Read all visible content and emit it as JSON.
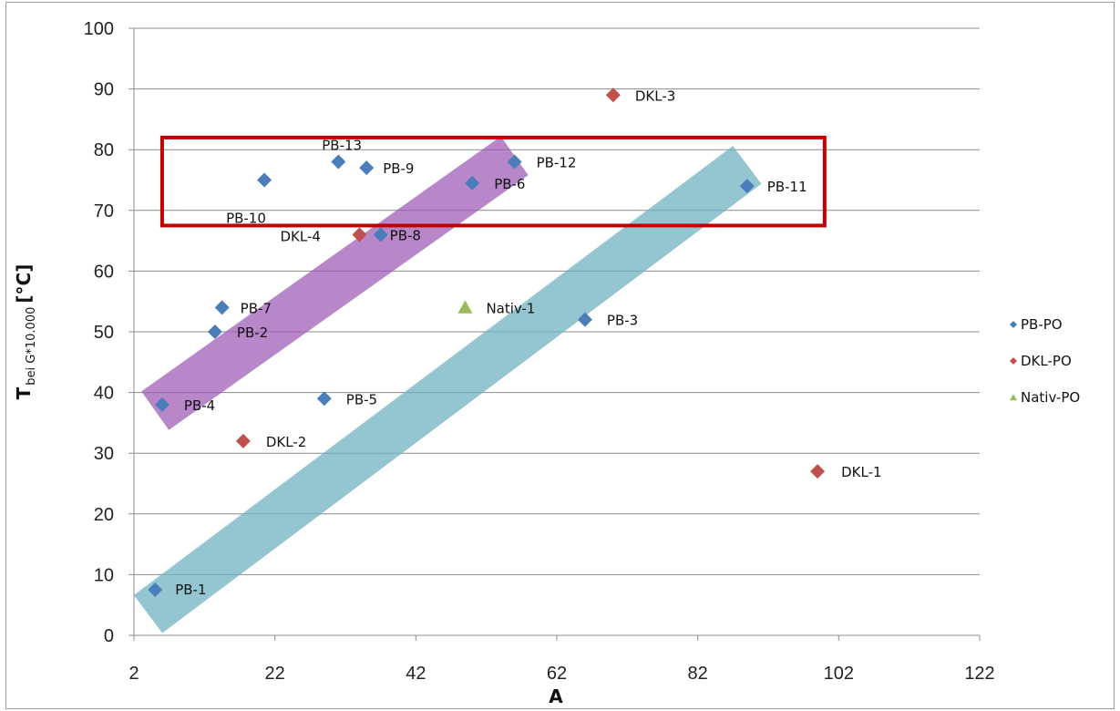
{
  "chart_data": {
    "type": "scatter",
    "xlabel": "A",
    "ylabel": {
      "main": "T",
      "subscript": "bei G*10.000",
      "unit": "[°C]"
    },
    "xlim": [
      2,
      122
    ],
    "ylim": [
      0,
      100
    ],
    "xticks": [
      2,
      22,
      42,
      62,
      82,
      102,
      122
    ],
    "yticks": [
      0,
      10,
      20,
      30,
      40,
      50,
      60,
      70,
      80,
      90,
      100
    ],
    "grid": "horizontal",
    "legend_position": "right",
    "series": [
      {
        "name": "PB-PO",
        "color": "#4a7ebb",
        "marker": "diamond",
        "points": [
          {
            "label": "PB-1",
            "x": 5,
            "y": 7.5
          },
          {
            "label": "PB-2",
            "x": 13.5,
            "y": 50
          },
          {
            "label": "PB-3",
            "x": 66,
            "y": 52
          },
          {
            "label": "PB-4",
            "x": 6,
            "y": 38
          },
          {
            "label": "PB-5",
            "x": 29,
            "y": 39
          },
          {
            "label": "PB-6",
            "x": 50,
            "y": 74.5
          },
          {
            "label": "PB-7",
            "x": 14.5,
            "y": 54
          },
          {
            "label": "PB-8",
            "x": 37,
            "y": 66
          },
          {
            "label": "PB-9",
            "x": 35,
            "y": 77
          },
          {
            "label": "PB-10",
            "x": 20.5,
            "y": 75
          },
          {
            "label": "PB-11",
            "x": 89,
            "y": 74
          },
          {
            "label": "PB-12",
            "x": 56,
            "y": 78
          },
          {
            "label": "PB-13",
            "x": 31,
            "y": 78
          }
        ]
      },
      {
        "name": "DKL-PO",
        "color": "#c0504d",
        "marker": "diamond",
        "points": [
          {
            "label": "DKL-1",
            "x": 99,
            "y": 27
          },
          {
            "label": "DKL-2",
            "x": 17.5,
            "y": 32
          },
          {
            "label": "DKL-3",
            "x": 70,
            "y": 89
          },
          {
            "label": "DKL-4",
            "x": 34,
            "y": 66
          }
        ]
      },
      {
        "name": "Nativ-PO",
        "color": "#9bbb59",
        "marker": "triangle",
        "points": [
          {
            "label": "Nativ-1",
            "x": 49,
            "y": 54
          }
        ]
      }
    ],
    "highlights": [
      {
        "kind": "band",
        "color": "#9b59b6",
        "from": {
          "x": 5,
          "y": 37
        },
        "to": {
          "x": 56,
          "y": 79
        }
      },
      {
        "kind": "band",
        "color": "#6fb3c2",
        "from": {
          "x": 4,
          "y": 3.5
        },
        "to": {
          "x": 89,
          "y": 77.5
        }
      },
      {
        "kind": "rectangle",
        "color": "#c00000",
        "x": [
          6,
          100
        ],
        "y": [
          67.5,
          82
        ]
      }
    ]
  }
}
